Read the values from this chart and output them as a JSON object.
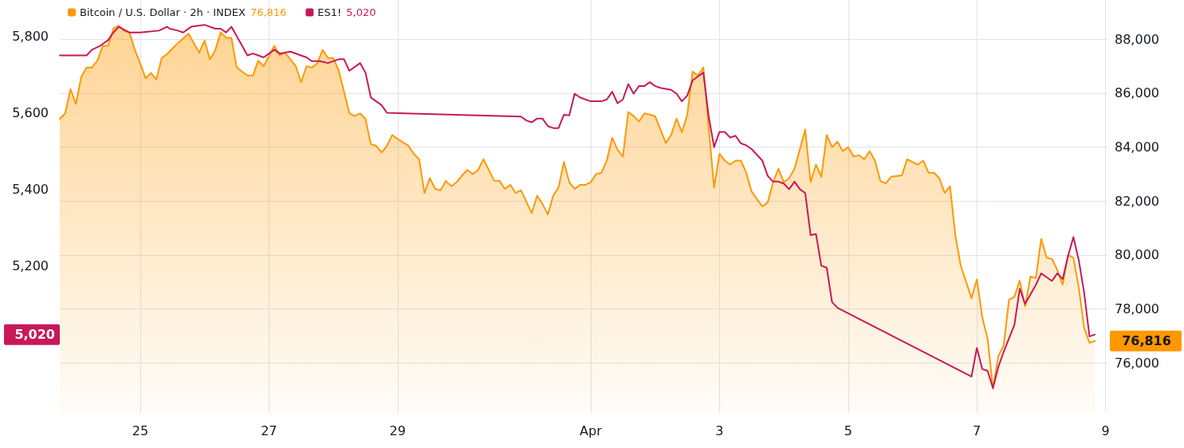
{
  "chart_data": {
    "type": "line",
    "grid": true,
    "legend": "top left",
    "xlim": [
      "--03-23T18:00",
      "--04-09T01:00"
    ],
    "xticks": [
      {
        "value": "--03-25",
        "label": "25"
      },
      {
        "value": "--03-27",
        "label": "27"
      },
      {
        "value": "--03-29",
        "label": "29"
      },
      {
        "value": "--04-01",
        "label": "Apr"
      },
      {
        "value": "--04-03",
        "label": "3"
      },
      {
        "value": "--04-05",
        "label": "5"
      },
      {
        "value": "--04-07",
        "label": "7"
      },
      {
        "value": "--04-09",
        "label": "9"
      }
    ],
    "ylim": [
      4815,
      5895
    ],
    "yticks": [
      {
        "value": 5200,
        "label": "5,200"
      },
      {
        "value": 5400,
        "label": "5,400"
      },
      {
        "value": 5600,
        "label": "5,600"
      },
      {
        "value": 5800,
        "label": "5,800"
      }
    ],
    "y2lim": [
      74150,
      89450
    ],
    "y2ticks": [
      {
        "value": 76000,
        "label": "76,000"
      },
      {
        "value": 78000,
        "label": "78,000"
      },
      {
        "value": 80000,
        "label": "80,000"
      },
      {
        "value": 82000,
        "label": "82,000"
      },
      {
        "value": 84000,
        "label": "84,000"
      },
      {
        "value": 86000,
        "label": "86,000"
      },
      {
        "value": 88000,
        "label": "88,000"
      }
    ],
    "annotations": [
      "76,816",
      "5,020"
    ],
    "series": [
      {
        "name": "Bitcoin / U.S. Dollar · 2h · INDEX",
        "type": "area",
        "axis": "y2",
        "color": "#ff9800",
        "x": [
          "--03-23T18:00",
          "--03-23T20:00",
          "--03-23T22:00",
          "--03-24T00:00",
          "--03-24T02:00",
          "--03-24T04:00",
          "--03-24T06:00",
          "--03-24T08:00",
          "--03-24T10:00",
          "--03-24T12:00",
          "--03-24T14:00",
          "--03-24T16:00",
          "--03-24T18:00",
          "--03-24T20:00",
          "--03-24T22:00",
          "--03-25T00:00",
          "--03-25T02:00",
          "--03-25T04:00",
          "--03-25T06:00",
          "--03-25T08:00",
          "--03-25T10:00",
          "--03-25T14:00",
          "--03-25T18:00",
          "--03-25T22:00",
          "--03-26T00:00",
          "--03-26T02:00",
          "--03-26T04:00",
          "--03-26T06:00",
          "--03-26T08:00",
          "--03-26T10:00",
          "--03-26T12:00",
          "--03-26T14:00",
          "--03-26T16:00",
          "--03-26T18:00",
          "--03-26T20:00",
          "--03-26T22:00",
          "--03-27T02:00",
          "--03-27T04:00",
          "--03-27T06:00",
          "--03-27T10:00",
          "--03-27T12:00",
          "--03-27T14:00",
          "--03-27T16:00",
          "--03-27T18:00",
          "--03-27T20:00",
          "--03-27T22:00",
          "--03-28T00:00",
          "--03-28T02:00",
          "--03-28T04:00",
          "--03-28T06:00",
          "--03-28T08:00",
          "--03-28T10:00",
          "--03-28T12:00",
          "--03-28T14:00",
          "--03-28T16:00",
          "--03-28T18:00",
          "--03-28T20:00",
          "--03-28T22:00",
          "--03-29T00:00",
          "--03-29T04:00",
          "--03-29T06:00",
          "--03-29T08:00",
          "--03-29T10:00",
          "--03-29T12:00",
          "--03-29T14:00",
          "--03-29T16:00",
          "--03-29T18:00",
          "--03-29T20:00",
          "--03-29T22:00",
          "--03-30T00:00",
          "--03-30T02:00",
          "--03-30T04:00",
          "--03-30T06:00",
          "--03-30T08:00",
          "--03-30T12:00",
          "--03-30T14:00",
          "--03-30T16:00",
          "--03-30T18:00",
          "--03-30T20:00",
          "--03-30T22:00",
          "--03-31T02:00",
          "--03-31T04:00",
          "--03-31T06:00",
          "--03-31T08:00",
          "--03-31T10:00",
          "--03-31T12:00",
          "--03-31T14:00",
          "--03-31T16:00",
          "--03-31T18:00",
          "--03-31T20:00",
          "--03-31T22:00",
          "--04-01T00:00",
          "--04-01T02:00",
          "--04-01T04:00",
          "--04-01T06:00",
          "--04-01T08:00",
          "--04-01T10:00",
          "--04-01T12:00",
          "--04-01T14:00",
          "--04-01T16:00",
          "--04-01T18:00",
          "--04-01T20:00",
          "--04-02T00:00",
          "--04-02T04:00",
          "--04-02T06:00",
          "--04-02T08:00",
          "--04-02T10:00",
          "--04-02T12:00",
          "--04-02T14:00",
          "--04-02T16:00",
          "--04-02T18:00",
          "--04-02T22:00",
          "--04-03T00:00",
          "--04-03T02:00",
          "--04-03T04:00",
          "--04-03T06:00",
          "--04-03T08:00",
          "--04-03T10:00",
          "--04-03T12:00",
          "--04-03T16:00",
          "--04-03T18:00",
          "--04-03T20:00",
          "--04-03T22:00",
          "--04-04T00:00",
          "--04-04T02:00",
          "--04-04T04:00",
          "--04-04T08:00",
          "--04-04T10:00",
          "--04-04T12:00",
          "--04-04T14:00",
          "--04-04T16:00",
          "--04-04T18:00",
          "--04-04T20:00",
          "--04-04T22:00",
          "--04-05T00:00",
          "--04-05T02:00",
          "--04-05T04:00",
          "--04-05T06:00",
          "--04-05T08:00",
          "--04-05T10:00",
          "--04-05T12:00",
          "--04-05T14:00",
          "--04-05T16:00",
          "--04-05T20:00",
          "--04-05T22:00",
          "--04-06T02:00",
          "--04-06T04:00",
          "--04-06T06:00",
          "--04-06T08:00",
          "--04-06T10:00",
          "--04-06T12:00",
          "--04-06T14:00",
          "--04-06T16:00",
          "--04-06T18:00",
          "--04-06T22:00",
          "--04-07T00:00",
          "--04-07T02:00",
          "--04-07T04:00",
          "--04-07T06:00",
          "--04-07T08:00",
          "--04-07T10:00",
          "--04-07T12:00",
          "--04-07T14:00",
          "--04-07T16:00",
          "--04-07T18:00",
          "--04-07T20:00",
          "--04-07T22:00",
          "--04-08T00:00",
          "--04-08T02:00",
          "--04-08T04:00",
          "--04-08T06:00",
          "--04-08T08:00",
          "--04-08T10:00",
          "--04-08T12:00",
          "--04-08T14:00",
          "--04-08T16:00",
          "--04-08T18:00",
          "--04-08T20:00"
        ],
        "values": [
          85050,
          85250,
          86150,
          85600,
          86600,
          86950,
          86950,
          87200,
          87750,
          87750,
          88400,
          88500,
          88300,
          88250,
          87600,
          87100,
          86550,
          86750,
          86500,
          87300,
          87450,
          87850,
          88200,
          87500,
          87950,
          87250,
          87600,
          88250,
          88050,
          88050,
          86950,
          86800,
          86650,
          86650,
          87200,
          87000,
          87750,
          87400,
          87500,
          87000,
          86400,
          87000,
          86950,
          87100,
          87600,
          87300,
          87300,
          86850,
          86050,
          85250,
          85150,
          85250,
          85050,
          84100,
          84050,
          83800,
          84050,
          84450,
          84300,
          84050,
          83750,
          83550,
          82300,
          82850,
          82450,
          82400,
          82750,
          82550,
          82700,
          82950,
          83150,
          83000,
          83150,
          83550,
          82750,
          82750,
          82450,
          82600,
          82300,
          82400,
          81550,
          82200,
          81900,
          81500,
          82200,
          82500,
          83450,
          82700,
          82450,
          82600,
          82600,
          82700,
          83000,
          83050,
          83500,
          84350,
          83900,
          83650,
          85300,
          85150,
          84950,
          85250,
          85150,
          84150,
          84450,
          85050,
          84550,
          85200,
          86800,
          86650,
          86950,
          82500,
          83750,
          83500,
          83350,
          83500,
          83500,
          83050,
          82350,
          81800,
          81950,
          82700,
          83200,
          82700,
          82850,
          83200,
          84650,
          82700,
          83350,
          82900,
          84450,
          84000,
          84200,
          83850,
          84000,
          83650,
          83700,
          83550,
          83850,
          83500,
          82750,
          82650,
          82900,
          82950,
          83550,
          83350,
          83500,
          83050,
          83050,
          82850,
          82300,
          82550,
          80700,
          79600,
          78400,
          79100,
          77700,
          76900,
          75050,
          76250,
          76650,
          78350,
          78450,
          79050,
          78100,
          79200,
          79150,
          80600,
          79900,
          79850,
          79450,
          78900,
          80000,
          79900,
          78800,
          77300,
          76750,
          76816
        ]
      },
      {
        "name": "ES1!",
        "color": "#c8185a",
        "x": [
          "--03-23T18:00",
          "--03-24T00:00",
          "--03-24T04:00",
          "--03-24T06:00",
          "--03-24T09:00",
          "--03-24T12:00",
          "--03-24T14:00",
          "--03-24T16:00",
          "--03-24T20:00",
          "--03-25T00:00",
          "--03-25T07:00",
          "--03-25T10:00",
          "--03-25T11:00",
          "--03-25T14:00",
          "--03-25T16:00",
          "--03-25T19:00",
          "--03-26T00:00",
          "--03-26T04:00",
          "--03-26T06:00",
          "--03-26T08:00",
          "--03-26T10:00",
          "--03-26T16:00",
          "--03-26T18:00",
          "--03-26T20:00",
          "--03-26T22:00",
          "--03-27T02:00",
          "--03-27T04:00",
          "--03-27T08:00",
          "--03-27T14:00",
          "--03-27T16:00",
          "--03-27T19:00",
          "--03-27T22:00",
          "--03-28T02:00",
          "--03-28T04:00",
          "--03-28T06:00",
          "--03-28T10:00",
          "--03-28T12:00",
          "--03-28T14:00",
          "--03-28T16:00",
          "--03-28T18:00",
          "--03-28T20:00",
          "--03-30T22:00",
          "--03-31T00:00",
          "--03-31T02:00",
          "--03-31T04:00",
          "--03-31T06:00",
          "--03-31T08:00",
          "--03-31T10:00",
          "--03-31T12:00",
          "--03-31T14:00",
          "--03-31T16:00",
          "--03-31T18:00",
          "--03-31T20:00",
          "--04-01T00:00",
          "--04-01T04:00",
          "--04-01T06:00",
          "--04-01T08:00",
          "--04-01T10:00",
          "--04-01T12:00",
          "--04-01T14:00",
          "--04-01T16:00",
          "--04-01T18:00",
          "--04-01T20:00",
          "--04-01T22:00",
          "--04-02T00:00",
          "--04-02T02:00",
          "--04-02T06:00",
          "--04-02T08:00",
          "--04-02T10:00",
          "--04-02T12:00",
          "--04-02T14:00",
          "--04-02T17:00",
          "--04-02T18:00",
          "--04-02T20:00",
          "--04-02T22:00",
          "--04-03T00:00",
          "--04-03T02:00",
          "--04-03T04:00",
          "--04-03T06:00",
          "--04-03T08:00",
          "--04-03T10:00",
          "--04-03T12:00",
          "--04-03T14:00",
          "--04-03T16:00",
          "--04-03T18:00",
          "--04-03T20:00",
          "--04-03T22:00",
          "--04-04T00:00",
          "--04-04T02:00",
          "--04-04T04:00",
          "--04-04T06:00",
          "--04-04T08:00",
          "--04-04T10:00",
          "--04-04T12:00",
          "--04-04T14:00",
          "--04-04T16:00",
          "--04-04T18:00",
          "--04-04T20:00",
          "--04-06T22:00",
          "--04-07T00:00",
          "--04-07T02:00",
          "--04-07T04:00",
          "--04-07T06:00",
          "--04-07T08:00",
          "--04-07T10:00",
          "--04-07T12:00",
          "--04-07T14:00",
          "--04-07T16:00",
          "--04-07T18:00",
          "--04-07T20:00",
          "--04-07T22:00",
          "--04-08T00:00",
          "--04-08T02:00",
          "--04-08T04:00",
          "--04-08T06:00",
          "--04-08T08:00",
          "--04-08T10:00",
          "--04-08T12:00",
          "--04-08T14:00",
          "--04-08T16:00",
          "--04-08T18:00",
          "--04-08T20:00"
        ],
        "values": [
          5750,
          5750,
          5750,
          5765,
          5775,
          5790,
          5810,
          5825,
          5810,
          5810,
          5815,
          5825,
          5820,
          5815,
          5810,
          5825,
          5830,
          5820,
          5820,
          5810,
          5825,
          5750,
          5755,
          5750,
          5745,
          5765,
          5755,
          5760,
          5745,
          5735,
          5735,
          5730,
          5740,
          5740,
          5710,
          5730,
          5705,
          5640,
          5630,
          5620,
          5600,
          5590,
          5580,
          5575,
          5585,
          5585,
          5565,
          5560,
          5560,
          5595,
          5593,
          5650,
          5640,
          5630,
          5630,
          5635,
          5655,
          5625,
          5635,
          5675,
          5650,
          5670,
          5670,
          5680,
          5670,
          5665,
          5660,
          5650,
          5630,
          5645,
          5685,
          5700,
          5705,
          5590,
          5510,
          5550,
          5550,
          5535,
          5540,
          5520,
          5515,
          5505,
          5490,
          5475,
          5435,
          5420,
          5420,
          5415,
          5400,
          5420,
          5400,
          5390,
          5280,
          5283,
          5200,
          5195,
          5105,
          5090,
          4910,
          4985,
          4930,
          4925,
          4880,
          4935,
          4975,
          5010,
          5045,
          5140,
          5100,
          5125,
          5150,
          5180,
          5170,
          5160,
          5180,
          5165,
          5225,
          5275,
          5215,
          5130,
          5015,
          5020
        ]
      }
    ]
  }
}
